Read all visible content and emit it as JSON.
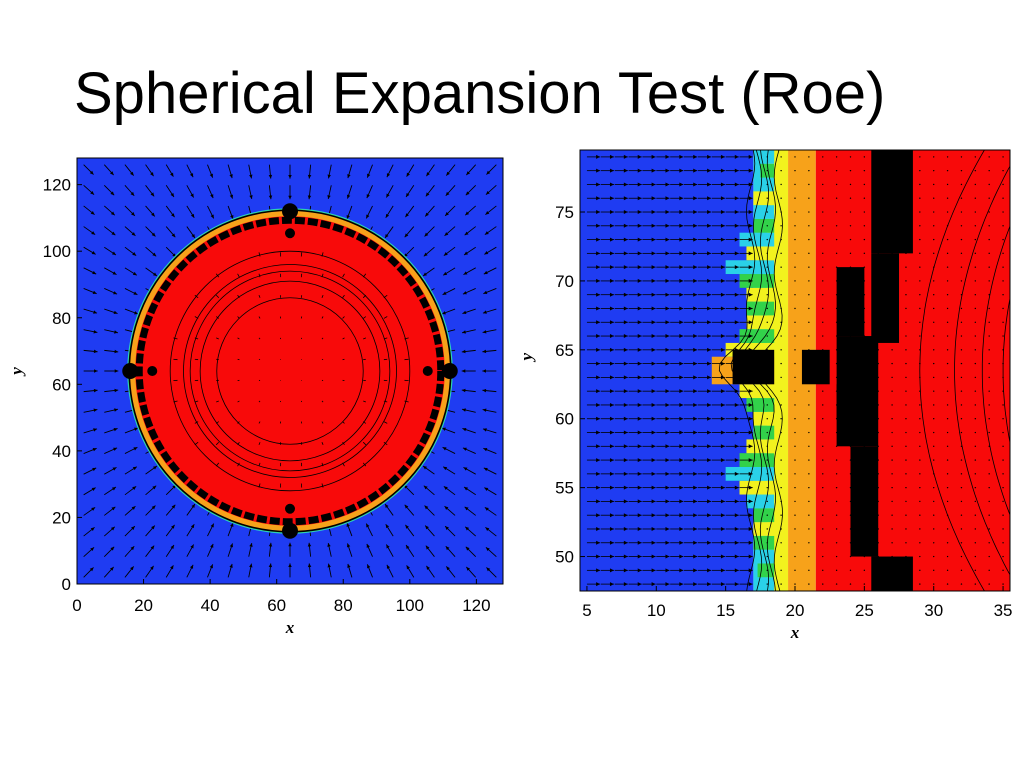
{
  "slide": {
    "title": "Spherical Expansion Test (Roe)"
  },
  "colors": {
    "background": "#1f3cf2",
    "shell": "#f80a0a",
    "black": "#000000",
    "yellow": "#f2f21e",
    "orange": "#f7a21a",
    "cyan": "#2ad1e8",
    "green": "#32d24a"
  },
  "chart_data": [
    {
      "type": "heatmap",
      "title": "",
      "xlabel": "x",
      "ylabel": "y",
      "xlim": [
        0,
        128
      ],
      "ylim": [
        0,
        128
      ],
      "xticks": [
        0,
        20,
        40,
        60,
        80,
        100,
        120
      ],
      "yticks": [
        0,
        20,
        40,
        60,
        80,
        100,
        120
      ],
      "xtick_labels": [
        "0",
        "20",
        "40",
        "60",
        "80",
        "100",
        "120"
      ],
      "ytick_labels": [
        "0",
        "20",
        "40",
        "60",
        "80",
        "100",
        "120"
      ],
      "center": [
        64,
        64
      ],
      "shell_outer_radius": 48,
      "shell_inner_radius": 40,
      "contour_radii": [
        22,
        27,
        30,
        32,
        36
      ],
      "overlay": "velocity vectors pointing toward center outside shell"
    },
    {
      "type": "heatmap",
      "title": "",
      "xlabel": "x",
      "ylabel": "y",
      "xlim": [
        4.5,
        35.5
      ],
      "ylim": [
        47.5,
        79.5
      ],
      "xticks": [
        5,
        10,
        15,
        20,
        25,
        30,
        35
      ],
      "yticks": [
        50,
        55,
        60,
        65,
        70,
        75
      ],
      "xtick_labels": [
        "5",
        "10",
        "15",
        "20",
        "25",
        "30",
        "35"
      ],
      "ytick_labels": [
        "50",
        "55",
        "60",
        "65",
        "70",
        "75"
      ],
      "bands": [
        {
          "from": 4.5,
          "to": 17,
          "color": "blue"
        },
        {
          "from": 17,
          "to": 18,
          "color": "cyan"
        },
        {
          "from": 18,
          "to": 19.5,
          "color": "yellow"
        },
        {
          "from": 19.5,
          "to": 21.5,
          "color": "orange"
        },
        {
          "from": 21.5,
          "to": 35.5,
          "color": "red"
        }
      ],
      "overlay": "velocity vectors pointing right in blue region"
    }
  ]
}
